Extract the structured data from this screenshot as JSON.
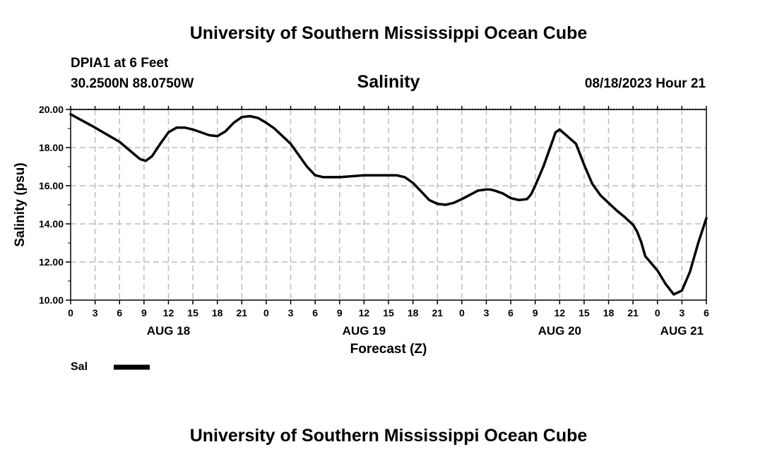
{
  "title_top": "University of Southern Mississippi Ocean Cube",
  "title_bottom": "University of Southern Mississippi Ocean Cube",
  "station": "DPIA1 at 6 Feet",
  "coords": "30.2500N  88.0750W",
  "variable": "Salinity",
  "issued": "08/18/2023 Hour 21",
  "legend": {
    "label": "Sal",
    "color": "#000000"
  },
  "chart_data": {
    "type": "line",
    "title": "Salinity",
    "xlabel": "Forecast (Z)",
    "ylabel": "Salinity (psu)",
    "ylim": [
      10.0,
      20.0
    ],
    "yticks": [
      "10.00",
      "12.00",
      "14.00",
      "16.00",
      "18.00",
      "20.00"
    ],
    "xlim": [
      0,
      78
    ],
    "x_unit": "hours since AUG 18 00Z",
    "xtick_hours": [
      0,
      3,
      6,
      9,
      12,
      15,
      18,
      21,
      24,
      27,
      30,
      33,
      36,
      39,
      42,
      45,
      48,
      51,
      54,
      57,
      60,
      63,
      66,
      69,
      72,
      75,
      78
    ],
    "xtick_labels": [
      "0",
      "3",
      "6",
      "9",
      "12",
      "15",
      "18",
      "21",
      "0",
      "3",
      "6",
      "9",
      "12",
      "15",
      "18",
      "21",
      "0",
      "3",
      "6",
      "9",
      "12",
      "15",
      "18",
      "21",
      "0",
      "3",
      "6"
    ],
    "date_labels": [
      {
        "label": "AUG 18",
        "hour": 12
      },
      {
        "label": "AUG 19",
        "hour": 36
      },
      {
        "label": "AUG 20",
        "hour": 60
      },
      {
        "label": "AUG 21",
        "hour": 75
      }
    ],
    "grid": true,
    "series": [
      {
        "name": "Sal",
        "x": [
          0,
          3,
          6,
          8.5,
          9.2,
          10,
          11,
          12,
          13,
          14,
          15,
          16,
          17,
          18,
          19,
          20,
          21,
          22,
          23,
          24,
          25,
          27,
          29,
          30,
          31,
          33,
          36,
          39,
          40,
          41,
          42,
          43,
          44,
          45,
          46,
          47,
          48,
          50,
          51,
          51.5,
          52,
          53,
          54,
          55,
          56,
          56.5,
          57,
          58,
          59,
          59.5,
          60,
          62,
          63,
          64,
          65,
          66,
          67,
          68,
          69,
          69.5,
          70,
          70.5,
          72,
          73,
          74,
          74.5,
          75,
          76,
          77,
          78
        ],
        "values": [
          19.75,
          19.05,
          18.3,
          17.4,
          17.3,
          17.55,
          18.2,
          18.8,
          19.05,
          19.05,
          18.95,
          18.8,
          18.65,
          18.6,
          18.85,
          19.3,
          19.6,
          19.65,
          19.55,
          19.3,
          19.0,
          18.2,
          17.0,
          16.55,
          16.45,
          16.45,
          16.55,
          16.55,
          16.55,
          16.45,
          16.15,
          15.7,
          15.25,
          15.05,
          15.0,
          15.1,
          15.3,
          15.75,
          15.8,
          15.8,
          15.75,
          15.6,
          15.35,
          15.25,
          15.3,
          15.55,
          16.0,
          17.0,
          18.2,
          18.8,
          18.95,
          18.2,
          17.1,
          16.1,
          15.5,
          15.1,
          14.7,
          14.35,
          13.95,
          13.6,
          13.05,
          12.3,
          11.55,
          10.85,
          10.3,
          10.4,
          10.5,
          11.5,
          13.0,
          14.3
        ]
      }
    ]
  }
}
